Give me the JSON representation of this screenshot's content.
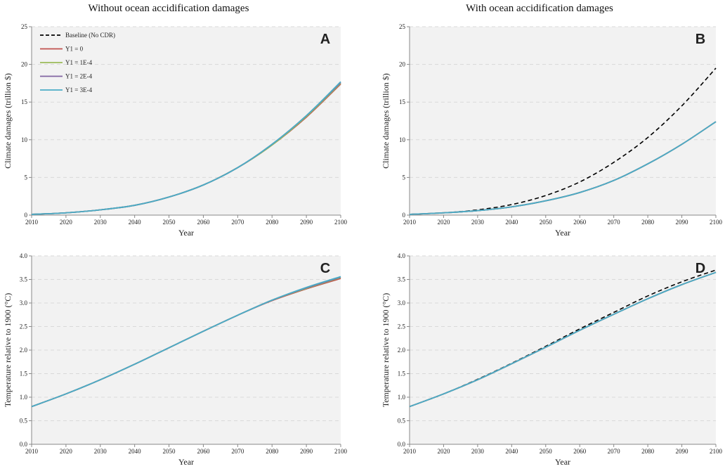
{
  "titles": {
    "left": "Without ocean accidification damages",
    "right": "With ocean accidification damages"
  },
  "colors": {
    "background": "#f2f2f2",
    "grid": "#d9d9d9",
    "baseline": "#000000",
    "y1_0": "#c0504d",
    "y1_1e4": "#9bbb59",
    "y1_2e4": "#8064a2",
    "y1_3e4": "#4bacc6"
  },
  "chart_data": [
    {
      "type": "line",
      "panel": "A",
      "xlabel": "Year",
      "ylabel": "Climate damages (trillion $)",
      "xlim": [
        2010,
        2100
      ],
      "ylim": [
        0,
        25
      ],
      "xticks": [
        "2010",
        "2020",
        "2030",
        "2040",
        "2050",
        "2060",
        "2070",
        "2080",
        "2090",
        "2100"
      ],
      "yticks": [
        "0",
        "5",
        "10",
        "15",
        "20",
        "25"
      ],
      "legend": {
        "position": "top-left",
        "entries": [
          "Baseline (No CDR)",
          "Y1 = 0",
          "Y1 = 1E-4",
          "Y1 = 2E-4",
          "Y1 = 3E-4"
        ]
      },
      "x": [
        2010,
        2020,
        2030,
        2040,
        2050,
        2060,
        2070,
        2080,
        2090,
        2100
      ],
      "series": [
        {
          "name": "Y1 = 0",
          "values": [
            0.1,
            0.3,
            0.7,
            1.3,
            2.4,
            4.0,
            6.3,
            9.3,
            13.0,
            17.4
          ]
        },
        {
          "name": "Y1 = 1E-4",
          "values": [
            0.1,
            0.3,
            0.7,
            1.3,
            2.4,
            4.0,
            6.3,
            9.3,
            13.1,
            17.5
          ]
        },
        {
          "name": "Y1 = 2E-4",
          "values": [
            0.1,
            0.3,
            0.7,
            1.3,
            2.4,
            4.0,
            6.3,
            9.4,
            13.2,
            17.6
          ]
        },
        {
          "name": "Y1 = 3E-4",
          "values": [
            0.1,
            0.3,
            0.7,
            1.3,
            2.4,
            4.0,
            6.3,
            9.4,
            13.2,
            17.7
          ]
        }
      ]
    },
    {
      "type": "line",
      "panel": "B",
      "xlabel": "Year",
      "ylabel": "Climate damages (trillion $)",
      "xlim": [
        2010,
        2100
      ],
      "ylim": [
        0,
        25
      ],
      "xticks": [
        "2010",
        "2020",
        "2030",
        "2040",
        "2050",
        "2060",
        "2070",
        "2080",
        "2090",
        "2100"
      ],
      "yticks": [
        "0",
        "5",
        "10",
        "15",
        "20",
        "25"
      ],
      "x": [
        2010,
        2020,
        2030,
        2040,
        2050,
        2060,
        2070,
        2080,
        2090,
        2100
      ],
      "series": [
        {
          "name": "Baseline (No CDR)",
          "values": [
            0.1,
            0.3,
            0.7,
            1.4,
            2.6,
            4.4,
            7.0,
            10.3,
            14.5,
            19.5
          ]
        },
        {
          "name": "Y1 = 0",
          "values": [
            0.1,
            0.3,
            0.6,
            1.1,
            1.9,
            3.0,
            4.6,
            6.8,
            9.4,
            12.4
          ]
        },
        {
          "name": "Y1 = 1E-4",
          "values": [
            0.1,
            0.3,
            0.6,
            1.1,
            1.9,
            3.0,
            4.6,
            6.8,
            9.4,
            12.4
          ]
        },
        {
          "name": "Y1 = 2E-4",
          "values": [
            0.1,
            0.3,
            0.6,
            1.1,
            1.9,
            3.0,
            4.6,
            6.8,
            9.4,
            12.4
          ]
        },
        {
          "name": "Y1 = 3E-4",
          "values": [
            0.1,
            0.3,
            0.6,
            1.1,
            1.9,
            3.0,
            4.6,
            6.8,
            9.4,
            12.4
          ]
        }
      ]
    },
    {
      "type": "line",
      "panel": "C",
      "xlabel": "Year",
      "ylabel": "Temperature relative to 1900 (°C)",
      "xlim": [
        2010,
        2100
      ],
      "ylim": [
        0,
        4
      ],
      "xticks": [
        "2010",
        "2020",
        "2030",
        "2040",
        "2050",
        "2060",
        "2070",
        "2080",
        "2090",
        "2100"
      ],
      "yticks": [
        "0.0",
        "0.5",
        "1.0",
        "1.5",
        "2.0",
        "2.5",
        "3.0",
        "3.5",
        "4.0"
      ],
      "x": [
        2010,
        2020,
        2030,
        2040,
        2050,
        2060,
        2070,
        2080,
        2090,
        2100
      ],
      "series": [
        {
          "name": "Y1 = 0",
          "values": [
            0.8,
            1.07,
            1.37,
            1.7,
            2.05,
            2.4,
            2.74,
            3.05,
            3.3,
            3.52
          ]
        },
        {
          "name": "Y1 = 1E-4",
          "values": [
            0.8,
            1.07,
            1.37,
            1.7,
            2.05,
            2.4,
            2.74,
            3.06,
            3.31,
            3.54
          ]
        },
        {
          "name": "Y1 = 2E-4",
          "values": [
            0.8,
            1.07,
            1.37,
            1.7,
            2.05,
            2.4,
            2.74,
            3.06,
            3.32,
            3.55
          ]
        },
        {
          "name": "Y1 = 3E-4",
          "values": [
            0.8,
            1.07,
            1.37,
            1.7,
            2.05,
            2.4,
            2.74,
            3.06,
            3.33,
            3.56
          ]
        }
      ]
    },
    {
      "type": "line",
      "panel": "D",
      "xlabel": "Year",
      "ylabel": "Temperature relative to 1900 (°C)",
      "xlim": [
        2010,
        2100
      ],
      "ylim": [
        0,
        4
      ],
      "xticks": [
        "2010",
        "2020",
        "2030",
        "2040",
        "2050",
        "2060",
        "2070",
        "2080",
        "2090",
        "2100"
      ],
      "yticks": [
        "0.0",
        "0.5",
        "1.0",
        "1.5",
        "2.0",
        "2.5",
        "3.0",
        "3.5",
        "4.0"
      ],
      "x": [
        2010,
        2020,
        2030,
        2040,
        2050,
        2060,
        2070,
        2080,
        2090,
        2100
      ],
      "series": [
        {
          "name": "Baseline (No CDR)",
          "values": [
            0.8,
            1.07,
            1.38,
            1.72,
            2.08,
            2.45,
            2.8,
            3.15,
            3.45,
            3.7
          ]
        },
        {
          "name": "Y1 = 0",
          "values": [
            0.8,
            1.07,
            1.37,
            1.71,
            2.06,
            2.42,
            2.76,
            3.09,
            3.39,
            3.65
          ]
        },
        {
          "name": "Y1 = 1E-4",
          "values": [
            0.8,
            1.07,
            1.37,
            1.71,
            2.06,
            2.42,
            2.76,
            3.09,
            3.39,
            3.65
          ]
        },
        {
          "name": "Y1 = 2E-4",
          "values": [
            0.8,
            1.07,
            1.37,
            1.71,
            2.06,
            2.42,
            2.76,
            3.09,
            3.39,
            3.65
          ]
        },
        {
          "name": "Y1 = 3E-4",
          "values": [
            0.8,
            1.07,
            1.37,
            1.71,
            2.06,
            2.42,
            2.76,
            3.09,
            3.39,
            3.65
          ]
        }
      ]
    }
  ]
}
